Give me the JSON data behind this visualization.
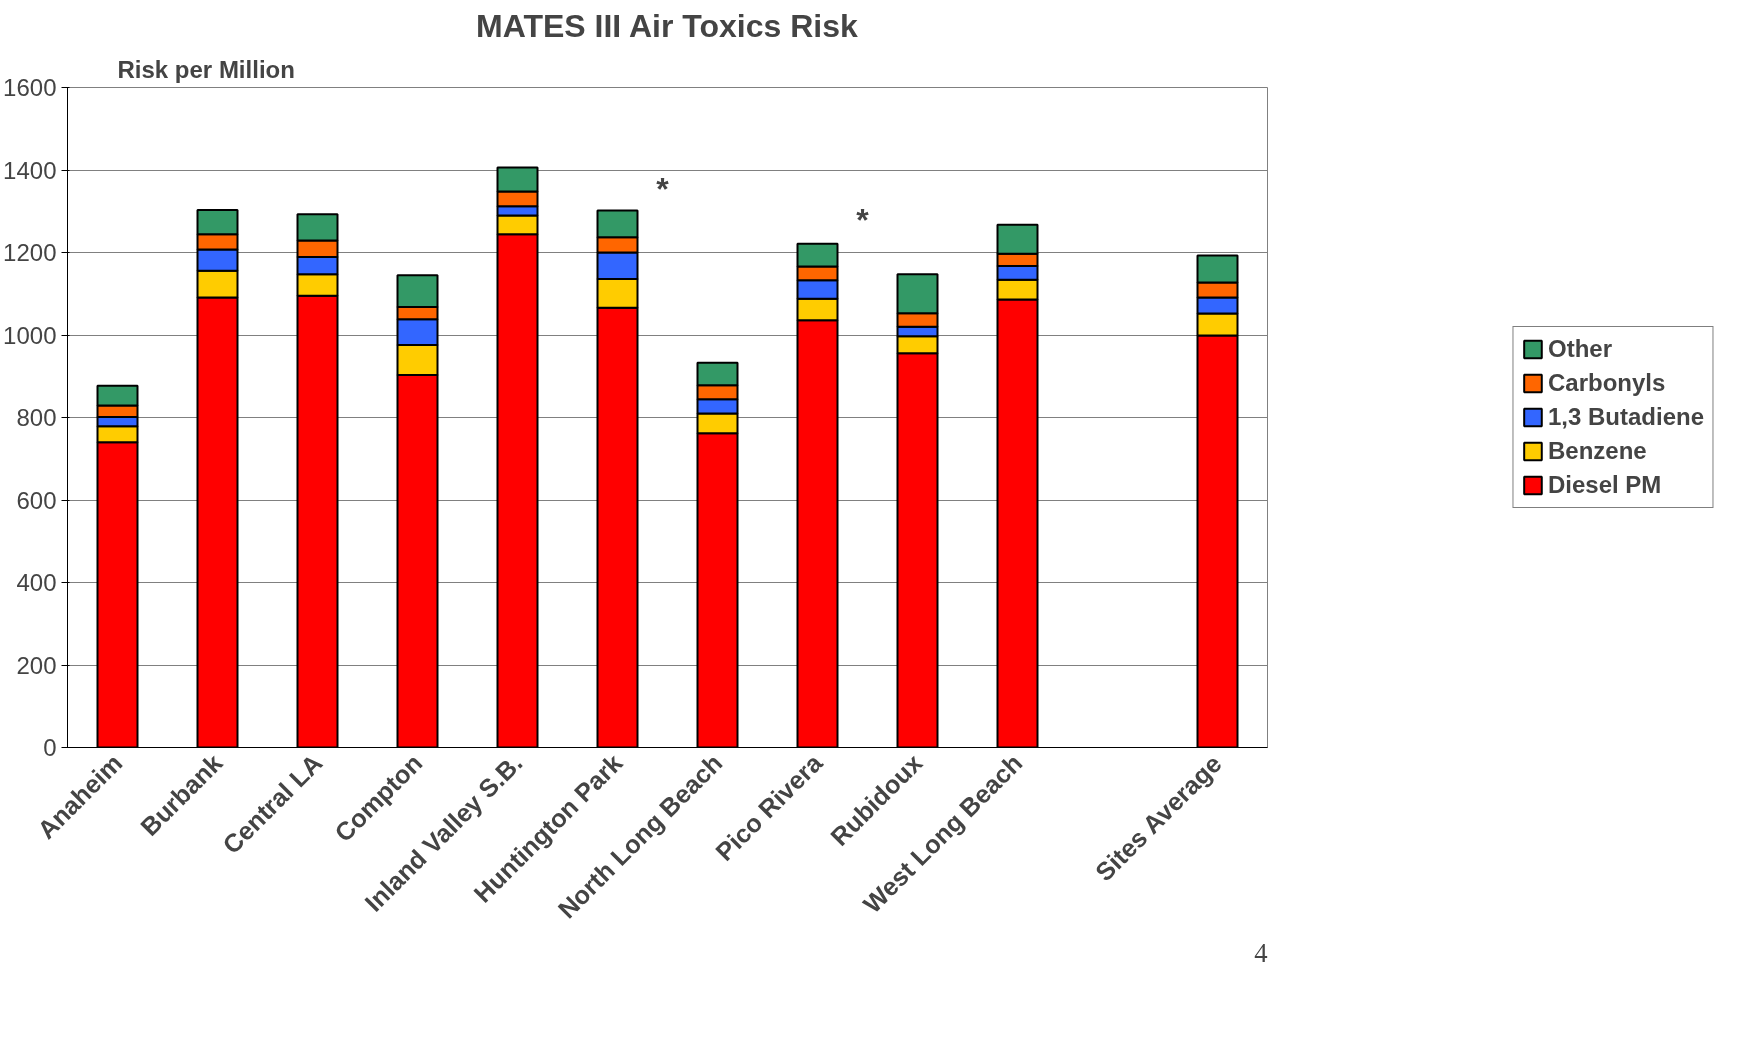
{
  "chart_data": {
    "type": "bar",
    "title": "MATES III Air Toxics Risk",
    "ylabel": "Risk per Million",
    "categories": [
      "Anaheim",
      "Burbank",
      "Central LA",
      "Compton",
      "Inland Valley S.B.",
      "Huntington Park",
      "North Long Beach",
      "Pico Rivera",
      "Rubidoux",
      "West Long Beach",
      null,
      "Sites Average"
    ],
    "stacked": true,
    "series": [
      {
        "name": "Diesel PM",
        "color": "#ff0000",
        "values": [
          740,
          1091,
          1095,
          903,
          1244,
          1066,
          762,
          1036,
          956,
          1086,
          null,
          999
        ]
      },
      {
        "name": "Benzene",
        "color": "#ffcc00",
        "values": [
          39,
          65,
          52,
          73,
          46,
          70,
          48,
          52,
          41,
          48,
          null,
          53
        ]
      },
      {
        "name": "1,3 Butadiene",
        "color": "#3366ff",
        "values": [
          22,
          51,
          42,
          62,
          22,
          64,
          34,
          45,
          23,
          33,
          null,
          39
        ]
      },
      {
        "name": "Carbonyls",
        "color": "#ff6600",
        "values": [
          28,
          37,
          40,
          30,
          36,
          37,
          34,
          33,
          33,
          30,
          null,
          36
        ]
      },
      {
        "name": "Other",
        "color": "#339966",
        "values": [
          48,
          59,
          64,
          77,
          58,
          65,
          55,
          55,
          94,
          70,
          null,
          66
        ]
      }
    ],
    "ylim": [
      0,
      1600
    ],
    "yticks": [
      0,
      200,
      400,
      600,
      800,
      1000,
      1200,
      1400,
      1600
    ],
    "grid": "y",
    "legend": "right",
    "annotations": [
      "*",
      "*",
      "4"
    ]
  }
}
